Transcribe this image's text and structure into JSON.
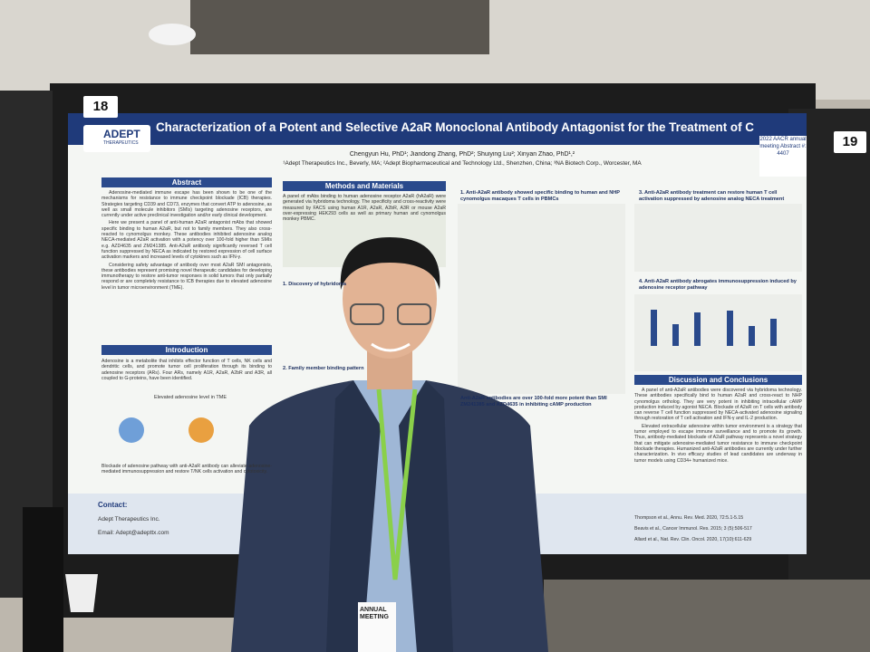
{
  "board_numbers": [
    "18",
    "19"
  ],
  "logo": {
    "name": "ADEPT",
    "tagline": "THERAPEUTICS"
  },
  "poster": {
    "title": "Characterization of a Potent and Selective A2aR Monoclonal Antibody Antagonist for the Treatment of Cancer",
    "authors": "Chengyun Hu, PhD¹; Jiandong Zhang, PhD²; Shuiying Liu²; Xinyan Zhao, PhD¹,²",
    "affiliations": "¹Adept Therapeutics Inc., Beverly, MA; ²Adept Biopharmaceutical and Technology Ltd., Shenzhen, China; ³NA Biotech Corp., Worcester, MA",
    "meeting_box": "2022 AACR annual meeting Abstract #: 4407",
    "abstract": {
      "heading": "Abstract",
      "paragraphs": [
        "Adenosine-mediated immune escape has been shown to be one of the mechanisms for resistance to immune checkpoint blockade (ICB) therapies. Strategies targeting CD39 and CD73, enzymes that convert ATP to adenosine, as well as small molecule inhibitors (SMIs) targeting adenosine receptors, are currently under active preclinical investigation and/or early clinical development.",
        "Here we present a panel of anti-human A2aR antagonist mAbs that showed specific binding to human A2aR, but not to family members. They also cross-reacted to cynomolgus monkey. These antibodies inhibited adenosine analog NECA-mediated A2aR activation with a potency over 100-fold higher than SMIs e.g. AZD4635 and ZM241385. Anti-A2aR antibody significantly reversed T cell function suppressed by NECA as indicated by restored expression of cell surface activation markers and increased levels of cytokines such as IFN-γ.",
        "Considering safety advantage of antibody over most A2aR SMI antagonists, these antibodies represent promising novel therapeutic candidates for developing immunotherapy to restore anti-tumor responses in solid tumors that only partially respond or are completely resistance to ICB therapies due to elevated adenosine level in tumor microenvironment (TME)."
      ]
    },
    "introduction": {
      "heading": "Introduction",
      "text": "Adenosine is a metabolite that inhibits effector function of T cells, NK cells and dendritic cells, and promote tumor cell proliferation through its binding to adenosine receptors (ARs). Four ARs, namely A1R, A2aR, A2bR and A3R, all coupled to G-proteins, have been identified.",
      "figure_label": "Elevated adenosine level in TME",
      "conclusion": "Blockade of adenosine pathway with anti-A2aR antibody can alleviate adenosine-mediated immunosuppression and restore T/NK cells activation and cytotoxicity."
    },
    "methods": {
      "heading": "Methods and Materials",
      "text": "A panel of mAbs binding to human adenosine receptor A2aR (hA2aR) were generated via hybridoma technology. The specificity and cross-reactivity were measured by FACS using human A1R, A2aR, A2bR, A3R or mouse A2aR over-expressing HEK293 cells as well as primary human and cynomolgus monkey PBMC."
    },
    "results": [
      "1. Discovery of hybridoma",
      "2. Family member binding pattern",
      "1. Anti-A2aR antibody showed specific binding to human and NHP cynomolgus macaques T cells in PBMCs",
      "Anti-A2aR antibodies are over 100-fold more potent than SMI ZM241385 and AZD4635 in inhibiting cAMP production",
      "3. Anti-A2aR antibody treatment can restore human T cell activation suppressed by adenosine analog NECA treatment",
      "4. Anti-A2aR antibody abrogates immunosuppression induced by adenosine receptor pathway"
    ],
    "discussion": {
      "heading": "Discussion and Conclusions",
      "paragraphs": [
        "A panel of anti-A2aR antibodies were discovered via hybridoma technology. These antibodies specifically bind to human A2aR and cross-react to NHP cynomolgus ortholog. They are very potent in inhibiting intracellular cAMP production induced by agonist NECA. Blockade of A2aR on T cells with antibody can reverse T cell function suppressed by NECA-activated adenosine signaling through restoration of T cell activation and IFN-γ and IL-2 production.",
        "Elevated extracellular adenosine within tumor environment is a strategy that tumor employed to escape immune surveillance and to promote its growth. Thus, antibody-mediated blockade of A2aR pathway represents a novel strategy that can mitigate adenosine-mediated tumor resistance to immune checkpoint blockade therapies. Humanized anti-A2aR antibodies are currently under further characterization. In vivo efficacy studies of lead candidates are underway in tumor models using CD34+ humanized mice."
      ]
    },
    "contact": {
      "heading": "Contact:",
      "company": "Adept Therapeutics Inc.",
      "email": "Email: Adept@adepttx.com"
    },
    "references": [
      "Thompson et al., Annu. Rev. Med. 2020, 72:5.1-5.15",
      "Beavis et al., Cancer Immunol. Res. 2015; 3 (5):506-517",
      "Allard et al., Nat. Rev. Clin. Oncol. 2020, 17(10):611-629"
    ]
  },
  "badge": "ANNUAL MEETING"
}
